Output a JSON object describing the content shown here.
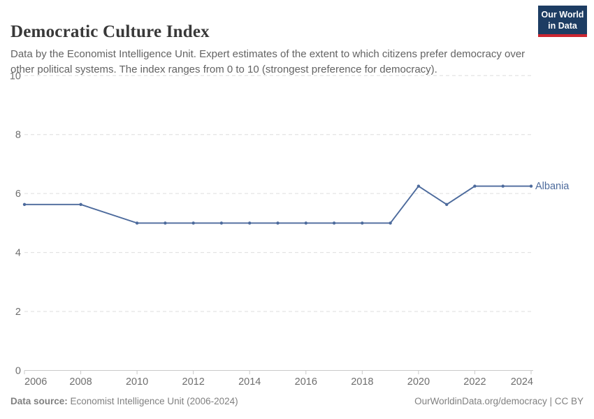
{
  "header": {
    "title": "Democratic Culture Index",
    "subtitle": "Data by the Economist Intelligence Unit. Expert estimates of the extent to which citizens prefer democracy over other political systems. The index ranges from 0 to 10 (strongest preference for democracy).",
    "logo": {
      "line1": "Our World",
      "line2": "in Data"
    }
  },
  "chart_data": {
    "type": "line",
    "title": "Democratic Culture Index",
    "x": [
      2006,
      2008,
      2010,
      2011,
      2012,
      2013,
      2014,
      2015,
      2016,
      2017,
      2018,
      2019,
      2020,
      2021,
      2022,
      2023,
      2024
    ],
    "series": [
      {
        "name": "Albania",
        "values": [
          5.63,
          5.63,
          5.0,
          5.0,
          5.0,
          5.0,
          5.0,
          5.0,
          5.0,
          5.0,
          5.0,
          5.0,
          6.25,
          5.63,
          6.25,
          6.25,
          6.25
        ]
      }
    ],
    "xlabel": "",
    "ylabel": "",
    "xlim": [
      2006,
      2024
    ],
    "ylim": [
      0,
      10
    ],
    "x_ticks": [
      2006,
      2008,
      2010,
      2012,
      2014,
      2016,
      2018,
      2020,
      2022,
      2024
    ],
    "y_ticks": [
      0,
      2,
      4,
      6,
      8,
      10
    ],
    "grid": "horizontal-dashed",
    "legend_position": "end-of-line-label"
  },
  "colors": {
    "line": "#4c6a9c",
    "logo_bg": "#1d3d63",
    "logo_bar": "#cc2631",
    "grid": "#dedede",
    "axis": "#c9c9c9",
    "tick_text": "#6e6e6e"
  },
  "footer": {
    "source_label": "Data source:",
    "source_text": " Economist Intelligence Unit (2006-2024)",
    "credit": "OurWorldinData.org/democracy | CC BY"
  }
}
